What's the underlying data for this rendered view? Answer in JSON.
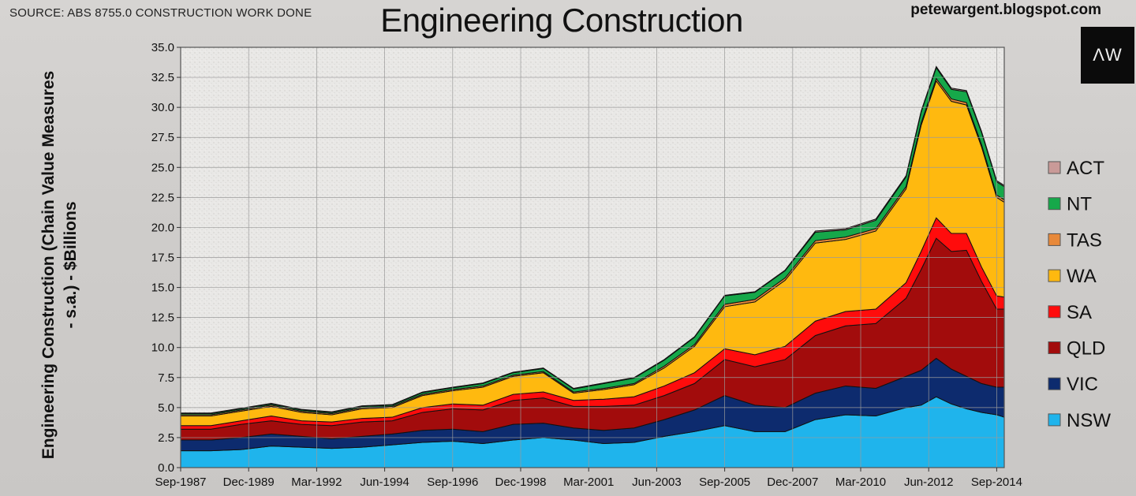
{
  "header": {
    "source": "SOURCE: ABS 8755.0 CONSTRUCTION WORK DONE",
    "blog": "petewargent.blogspot.com",
    "logo": "ΛW"
  },
  "chart_data": {
    "type": "area",
    "stacked": true,
    "title": "Engineering Construction",
    "ylabel_lines": [
      "Engineering Construction (Chain Value Measures",
      "- s.a.) - $Billions"
    ],
    "xlabel": "",
    "ylim": [
      0,
      35
    ],
    "yticks": [
      "0.0",
      "2.5",
      "5.0",
      "7.5",
      "10.0",
      "12.5",
      "15.0",
      "17.5",
      "20.0",
      "22.5",
      "25.0",
      "27.5",
      "30.0",
      "32.5",
      "35.0"
    ],
    "x_tick_labels": [
      "Sep-1987",
      "Dec-1989",
      "Mar-1992",
      "Jun-1994",
      "Sep-1996",
      "Dec-1998",
      "Mar-2001",
      "Jun-2003",
      "Sep-2005",
      "Dec-2007",
      "Mar-2010",
      "Jun-2012",
      "Sep-2014"
    ],
    "x_quarters": [
      "Sep-1987",
      "Sep-1988",
      "Sep-1989",
      "Sep-1990",
      "Sep-1991",
      "Sep-1992",
      "Sep-1993",
      "Sep-1994",
      "Sep-1995",
      "Sep-1996",
      "Sep-1997",
      "Sep-1998",
      "Sep-1999",
      "Sep-2000",
      "Sep-2001",
      "Sep-2002",
      "Sep-2003",
      "Sep-2004",
      "Sep-2005",
      "Sep-2006",
      "Sep-2007",
      "Sep-2008",
      "Sep-2009",
      "Sep-2010",
      "Sep-2011",
      "Mar-2012",
      "Sep-2012",
      "Mar-2013",
      "Sep-2013",
      "Mar-2014",
      "Sep-2014",
      "Dec-2014"
    ],
    "grid": true,
    "legend_position": "right",
    "series": [
      {
        "name": "NSW",
        "color": "#1fb4ec",
        "values": [
          1.4,
          1.4,
          1.5,
          1.8,
          1.7,
          1.6,
          1.7,
          1.9,
          2.1,
          2.2,
          2.0,
          2.3,
          2.5,
          2.3,
          2.0,
          2.1,
          2.6,
          3.0,
          3.5,
          3.0,
          3.0,
          4.0,
          4.4,
          4.3,
          5.0,
          5.2,
          5.9,
          5.3,
          4.9,
          4.6,
          4.4,
          4.2
        ]
      },
      {
        "name": "VIC",
        "color": "#0d2b6e",
        "values": [
          0.9,
          0.9,
          1.0,
          1.0,
          0.9,
          0.8,
          0.9,
          0.9,
          1.0,
          1.0,
          1.0,
          1.3,
          1.2,
          1.0,
          1.1,
          1.2,
          1.4,
          1.8,
          2.5,
          2.2,
          2.0,
          2.2,
          2.4,
          2.3,
          2.6,
          2.9,
          3.2,
          2.9,
          2.7,
          2.4,
          2.3,
          2.5
        ]
      },
      {
        "name": "QLD",
        "color": "#a20c0c",
        "values": [
          0.9,
          0.9,
          1.1,
          1.1,
          1.0,
          1.1,
          1.2,
          1.1,
          1.5,
          1.7,
          1.8,
          2.0,
          2.1,
          1.8,
          2.0,
          1.9,
          2.0,
          2.2,
          3.0,
          3.2,
          4.0,
          4.8,
          5.0,
          5.4,
          6.5,
          8.4,
          10.0,
          9.8,
          10.5,
          8.5,
          6.5,
          6.5
        ]
      },
      {
        "name": "SA",
        "color": "#ff0c0c",
        "values": [
          0.3,
          0.3,
          0.3,
          0.4,
          0.3,
          0.3,
          0.3,
          0.3,
          0.4,
          0.4,
          0.4,
          0.5,
          0.5,
          0.5,
          0.6,
          0.7,
          0.8,
          0.9,
          0.9,
          1.0,
          1.1,
          1.2,
          1.2,
          1.2,
          1.3,
          1.5,
          1.7,
          1.5,
          1.4,
          1.2,
          1.1,
          1.0
        ]
      },
      {
        "name": "WA",
        "color": "#ffb90f",
        "values": [
          0.8,
          0.8,
          0.8,
          0.8,
          0.7,
          0.6,
          0.8,
          0.8,
          1.0,
          1.1,
          1.5,
          1.5,
          1.6,
          0.6,
          0.8,
          1.0,
          1.5,
          2.2,
          3.5,
          4.4,
          5.5,
          6.5,
          6.0,
          6.5,
          7.8,
          10.5,
          11.4,
          11.0,
          10.7,
          10.0,
          8.2,
          7.9
        ]
      },
      {
        "name": "TAS",
        "color": "#e8893a",
        "values": [
          0.1,
          0.1,
          0.1,
          0.1,
          0.1,
          0.1,
          0.1,
          0.1,
          0.1,
          0.1,
          0.1,
          0.1,
          0.1,
          0.1,
          0.1,
          0.1,
          0.15,
          0.15,
          0.2,
          0.2,
          0.2,
          0.2,
          0.2,
          0.2,
          0.2,
          0.2,
          0.2,
          0.2,
          0.2,
          0.2,
          0.2,
          0.2
        ]
      },
      {
        "name": "NT",
        "color": "#16a84a",
        "values": [
          0.1,
          0.1,
          0.1,
          0.1,
          0.1,
          0.1,
          0.1,
          0.1,
          0.15,
          0.15,
          0.2,
          0.2,
          0.25,
          0.25,
          0.4,
          0.45,
          0.5,
          0.6,
          0.7,
          0.6,
          0.6,
          0.7,
          0.6,
          0.7,
          0.8,
          0.9,
          0.9,
          0.8,
          0.9,
          1.0,
          1.1,
          1.1
        ]
      },
      {
        "name": "ACT",
        "color": "#c99a98",
        "values": [
          0.05,
          0.05,
          0.05,
          0.05,
          0.05,
          0.05,
          0.05,
          0.05,
          0.05,
          0.05,
          0.05,
          0.05,
          0.05,
          0.05,
          0.05,
          0.05,
          0.05,
          0.05,
          0.05,
          0.05,
          0.05,
          0.1,
          0.1,
          0.1,
          0.1,
          0.1,
          0.1,
          0.1,
          0.1,
          0.1,
          0.1,
          0.1
        ]
      }
    ]
  }
}
